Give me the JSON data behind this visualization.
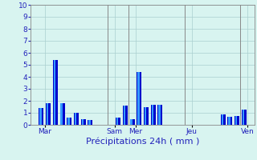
{
  "values": [
    0,
    1.4,
    1.8,
    5.4,
    1.8,
    0.6,
    1.0,
    0.5,
    0.4,
    0,
    0,
    0,
    0.6,
    1.6,
    0.5,
    4.4,
    1.5,
    1.7,
    1.7,
    0,
    0,
    0,
    0,
    0,
    0,
    0,
    0,
    0.9,
    0.7,
    0.75,
    1.3,
    0
  ],
  "bar_color_dark": "#0000cc",
  "bar_color_light": "#3399ff",
  "background_color": "#d8f4f0",
  "grid_color": "#aacfcf",
  "vline_color": "#888888",
  "xlabel": "Précipitations 24h ( mm )",
  "ylim": [
    0,
    10
  ],
  "yticks": [
    0,
    1,
    2,
    3,
    4,
    5,
    6,
    7,
    8,
    9,
    10
  ],
  "day_labels": [
    "Mar",
    "Sam",
    "Mer",
    "Jeu",
    "Ven"
  ],
  "day_tick_positions": [
    1.5,
    11.5,
    14.5,
    22.5,
    30.5
  ],
  "vline_positions": [
    10.5,
    13.5,
    21.5,
    29.5
  ],
  "n_bars": 32,
  "tick_fontsize": 6.5,
  "xlabel_fontsize": 8
}
